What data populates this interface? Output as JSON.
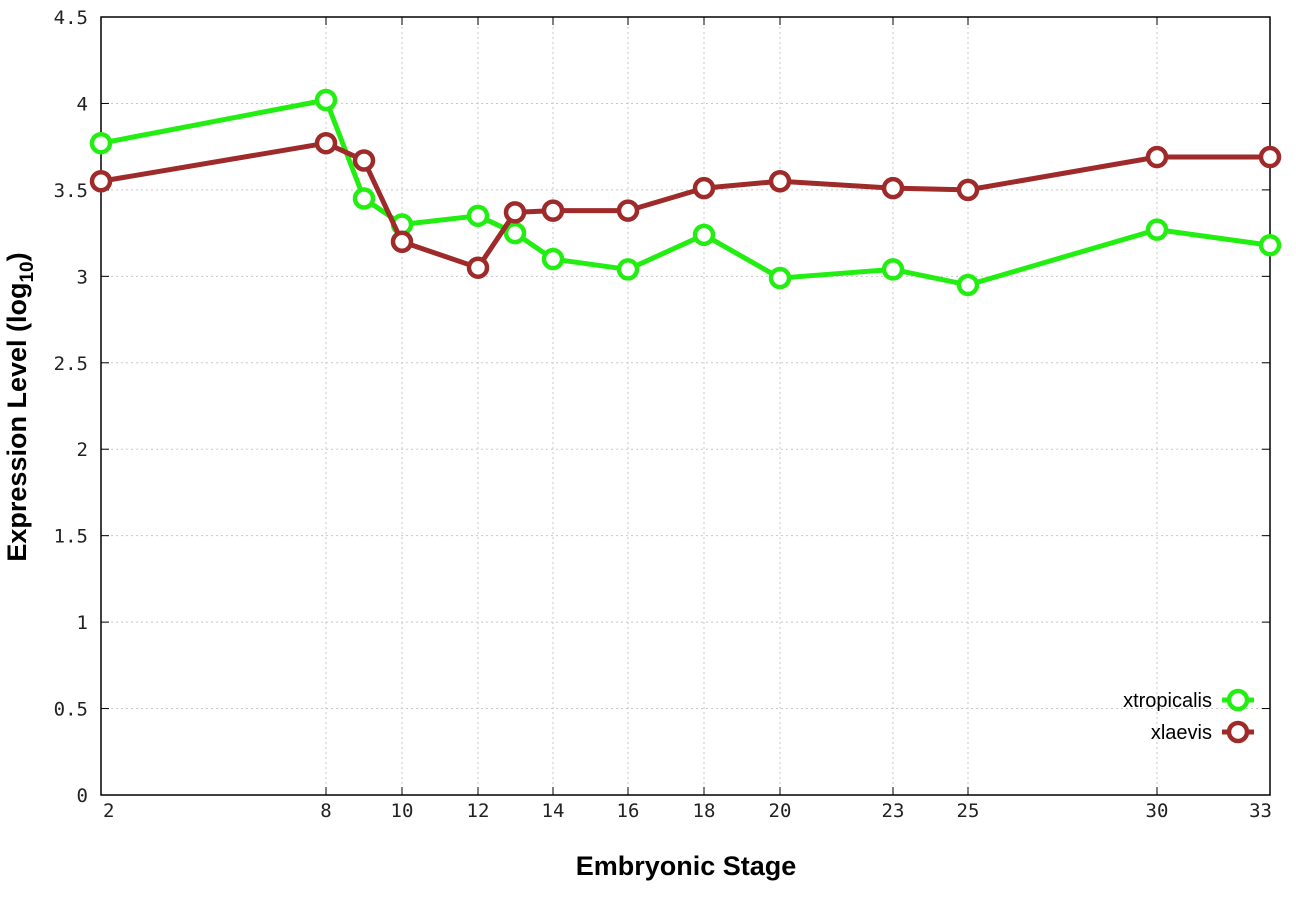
{
  "chart_data": {
    "type": "line",
    "xlabel": "Embryonic Stage",
    "ylabel_main": "Expression Level (log",
    "ylabel_sub": "10",
    "ylabel_close": ")",
    "x_ticks": [
      2,
      8,
      10,
      12,
      14,
      16,
      18,
      20,
      23,
      25,
      30,
      33
    ],
    "x_tick_labels": [
      "2",
      "8",
      "10",
      "12",
      "14",
      "16",
      "18",
      "20",
      "23",
      "25",
      "30",
      "33"
    ],
    "y_ticks": [
      0,
      0.5,
      1,
      1.5,
      2,
      2.5,
      3,
      3.5,
      4,
      4.5
    ],
    "y_tick_labels": [
      "0",
      "0.5",
      "1",
      "1.5",
      "2",
      "2.5",
      "3",
      "3.5",
      "4",
      "4.5"
    ],
    "ylim": [
      0,
      4.5
    ],
    "x_scale": "categorical stages (nonuniform spacing)",
    "grid": true,
    "legend_position": "bottom-right",
    "x": [
      2,
      8,
      9,
      10,
      12,
      13,
      14,
      16,
      18,
      20,
      23,
      25,
      30,
      33
    ],
    "series": [
      {
        "name": "xtropicalis",
        "color": "#22ee11",
        "values": [
          3.77,
          4.02,
          3.45,
          3.3,
          3.35,
          3.25,
          3.1,
          3.04,
          3.24,
          2.99,
          3.04,
          2.95,
          3.27,
          3.18
        ]
      },
      {
        "name": "xlaevis",
        "color": "#9e2a2a",
        "values": [
          3.55,
          3.77,
          3.67,
          3.2,
          3.05,
          3.37,
          3.38,
          3.38,
          3.51,
          3.55,
          3.51,
          3.5,
          3.69,
          3.69
        ]
      }
    ]
  }
}
